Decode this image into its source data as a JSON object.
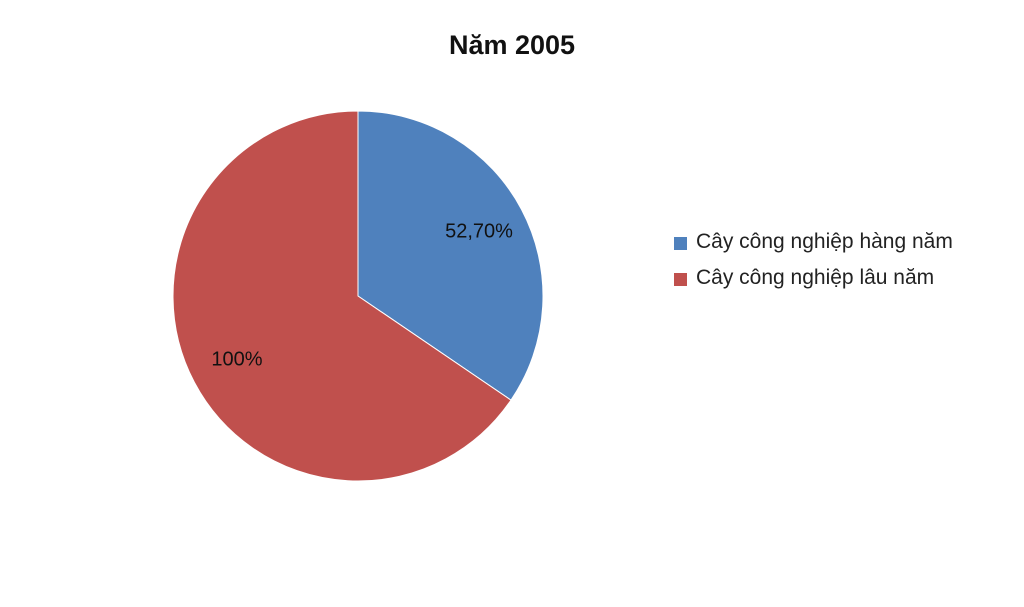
{
  "chart_data": {
    "type": "pie",
    "title": "Năm 2005",
    "categories": [
      "Cây công nghiệp hàng năm",
      "Cây công nghiệp lâu năm"
    ],
    "values": [
      52.7,
      100
    ],
    "value_labels": [
      "52,70%",
      "100%"
    ],
    "colors": [
      "#4f81bd",
      "#c0504d"
    ],
    "legend": "right"
  }
}
